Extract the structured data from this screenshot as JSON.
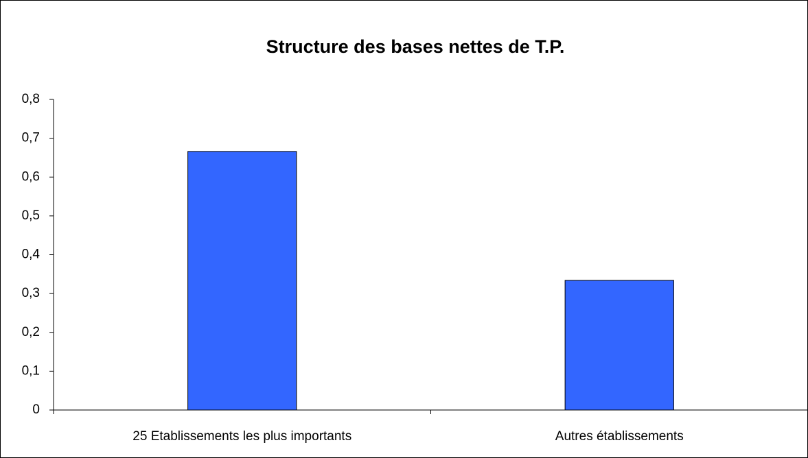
{
  "chart_data": {
    "type": "bar",
    "title": "Structure des bases nettes de T.P.",
    "categories": [
      "25 Etablissements les plus importants",
      "Autres établissements"
    ],
    "values": [
      0.666,
      0.334
    ],
    "color": "#3366ff",
    "ylim": [
      0,
      0.8
    ],
    "yticks": [
      0,
      {
        "value": 0.1,
        "label": "0,1"
      },
      {
        "value": 0.2,
        "label": "0,2"
      },
      {
        "value": 0.3,
        "label": "0,3"
      },
      {
        "value": 0.4,
        "label": "0,4"
      },
      {
        "value": 0.5,
        "label": "0,5"
      },
      {
        "value": 0.6,
        "label": "0,6"
      },
      {
        "value": 0.7,
        "label": "0,7"
      },
      {
        "value": 0.8,
        "label": "0,8"
      }
    ],
    "grid": false
  }
}
